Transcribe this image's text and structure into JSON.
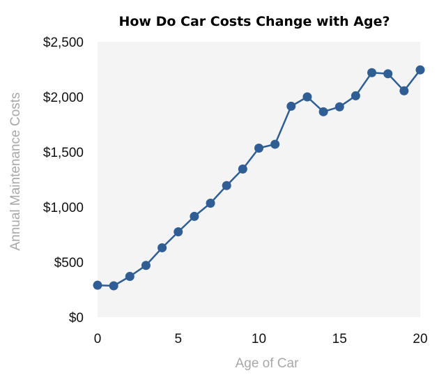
{
  "chart_data": {
    "type": "line",
    "title": "How Do Car Costs Change with Age?",
    "xlabel": "Age of Car",
    "ylabel": "Annual Maintenance Costs",
    "xlim": [
      0,
      20
    ],
    "ylim": [
      0,
      2500
    ],
    "x_ticks": [
      0,
      5,
      10,
      15,
      20
    ],
    "y_ticks": [
      0,
      500,
      1000,
      1500,
      2000,
      2500
    ],
    "y_tick_labels": [
      "$0",
      "$500",
      "$1,000",
      "$1,500",
      "$2,000",
      "$2,500"
    ],
    "grid": false,
    "background_color": "#f4f4f4",
    "series": [
      {
        "color": "#2e5e95",
        "x": [
          0,
          1,
          2,
          3,
          4,
          5,
          6,
          7,
          8,
          9,
          10,
          11,
          12,
          13,
          14,
          15,
          16,
          17,
          18,
          19,
          20
        ],
        "values": [
          290,
          285,
          370,
          470,
          630,
          775,
          915,
          1035,
          1195,
          1345,
          1535,
          1570,
          1915,
          2000,
          1865,
          1910,
          2010,
          2220,
          2210,
          2055,
          2245
        ]
      }
    ]
  }
}
